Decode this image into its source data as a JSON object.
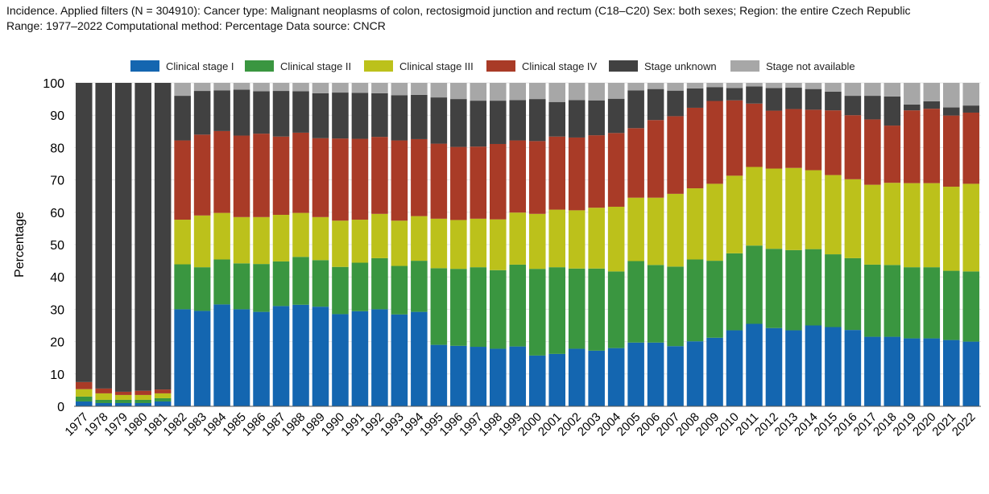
{
  "header": {
    "line1": "Incidence. Applied filters (N = 304910): Cancer type: Malignant neoplasms of colon, rectosigmoid junction and rectum (C18–C20) Sex: both sexes; Region: the entire Czech Republic",
    "line2": "Range: 1977–2022 Computational method: Percentage Data source: CNCR"
  },
  "chart_data": {
    "type": "bar",
    "stacked": true,
    "ylabel": "Percentage",
    "ylim": [
      0,
      100
    ],
    "yticks": [
      0,
      10,
      20,
      30,
      40,
      50,
      60,
      70,
      80,
      90,
      100
    ],
    "legend_position": "top",
    "categories": [
      "1977",
      "1978",
      "1979",
      "1980",
      "1981",
      "1982",
      "1983",
      "1984",
      "1985",
      "1986",
      "1987",
      "1988",
      "1989",
      "1990",
      "1991",
      "1992",
      "1993",
      "1994",
      "1995",
      "1996",
      "1997",
      "1998",
      "1999",
      "2000",
      "2001",
      "2002",
      "2003",
      "2004",
      "2005",
      "2006",
      "2007",
      "2008",
      "2009",
      "2010",
      "2011",
      "2012",
      "2013",
      "2014",
      "2015",
      "2016",
      "2017",
      "2018",
      "2019",
      "2020",
      "2021",
      "2022"
    ],
    "series": [
      {
        "name": "Clinical stage I",
        "color": "#1466b0",
        "values": [
          1.5,
          1,
          1,
          1,
          1.5,
          30,
          29.5,
          31.5,
          30,
          29.2,
          31,
          31.4,
          30.8,
          28.5,
          29.4,
          30,
          28.4,
          29.2,
          19,
          18.7,
          18.4,
          17.8,
          18.5,
          15.7,
          16.2,
          17.8,
          17.2,
          18,
          19.7,
          19.7,
          18.6,
          20.1,
          21.2,
          23.5,
          25.5,
          24.2,
          23.5,
          25,
          24.5,
          23.6,
          21.5,
          21.5,
          21,
          21,
          20.5,
          20
        ]
      },
      {
        "name": "Clinical stage II",
        "color": "#3a9640",
        "values": [
          1.5,
          1,
          1,
          1,
          1,
          13.9,
          13.5,
          13.9,
          14.2,
          14.8,
          13.8,
          14.8,
          14.4,
          14.6,
          15,
          15.8,
          15,
          15.8,
          23.7,
          23.8,
          24.6,
          24.3,
          25.3,
          26.8,
          26.8,
          24.8,
          25.4,
          23.7,
          25.2,
          24,
          24.6,
          25.3,
          23.8,
          23.8,
          24.2,
          24.5,
          24.8,
          23.6,
          22.5,
          22.2,
          22.3,
          22.2,
          22,
          22,
          21.4,
          21.7
        ]
      },
      {
        "name": "Clinical stage III",
        "color": "#bcc11b",
        "values": [
          2.3,
          2,
          1.5,
          1.5,
          1.5,
          13.8,
          16,
          14.4,
          14.3,
          14.5,
          14.4,
          13.6,
          13.3,
          14.3,
          13.3,
          13.7,
          14,
          13.8,
          15.3,
          15.1,
          15,
          15.7,
          16.1,
          17,
          17.8,
          18,
          18.8,
          20,
          19.6,
          20.8,
          22.5,
          22,
          23.8,
          24,
          24.3,
          24.8,
          25.4,
          24.4,
          24.5,
          24.4,
          24.7,
          25.4,
          26,
          26,
          26,
          27.1
        ]
      },
      {
        "name": "Clinical stage IV",
        "color": "#a93b27",
        "values": [
          2.2,
          1.5,
          1,
          1.3,
          1.2,
          24.5,
          25,
          25.3,
          25.2,
          25.8,
          24.2,
          24.8,
          24.4,
          25.4,
          25,
          23.8,
          24.8,
          23.8,
          23.2,
          22.6,
          22.3,
          23.3,
          22.3,
          22.5,
          22.6,
          22.5,
          22.4,
          22.8,
          21.5,
          24,
          24,
          24.9,
          25.6,
          23.3,
          19.6,
          17.9,
          18.2,
          18.7,
          20,
          19.8,
          20.2,
          17.7,
          22.5,
          23,
          22,
          22
        ]
      },
      {
        "name": "Stage unknown",
        "color": "#414141",
        "values": [
          92.5,
          94.5,
          95.5,
          95.2,
          94.8,
          13.8,
          13.5,
          12.6,
          14.2,
          13.1,
          14.1,
          12.8,
          13.9,
          14.2,
          14.2,
          13.5,
          14,
          13.7,
          14.3,
          14.8,
          14.2,
          13.4,
          12.5,
          13,
          10.7,
          11.6,
          10.8,
          10.6,
          11.7,
          9.6,
          7.9,
          6,
          4.3,
          3.8,
          5.3,
          7,
          6.6,
          6.4,
          5.8,
          6,
          7.3,
          9,
          1.8,
          2.3,
          2.5,
          2.2
        ]
      },
      {
        "name": "Stage not available",
        "color": "#a7a7a7",
        "values": [
          0,
          0,
          0,
          0,
          0,
          4,
          2.5,
          2.3,
          2.1,
          2.6,
          2.5,
          2.6,
          3.2,
          3,
          3.1,
          3.2,
          3.8,
          3.7,
          4.5,
          5,
          5.5,
          5.5,
          5.3,
          5,
          5.9,
          5.3,
          5.4,
          4.9,
          2.3,
          1.9,
          2.4,
          1.7,
          1.3,
          1.6,
          1.1,
          1.6,
          1.5,
          1.9,
          2.7,
          4,
          4,
          4.2,
          6.7,
          5.7,
          7.6,
          7
        ]
      }
    ]
  }
}
